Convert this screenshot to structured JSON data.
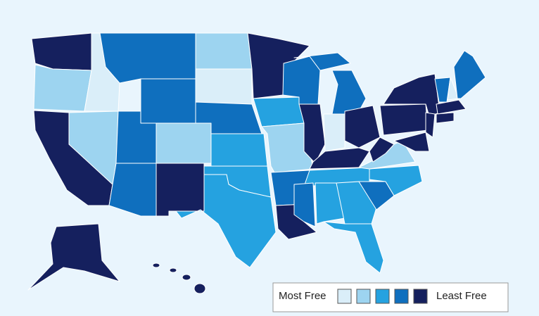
{
  "legend": {
    "min_label": "Most Free",
    "max_label": "Least Free",
    "colors": [
      "#daeef9",
      "#9dd4f0",
      "#25a2e0",
      "#0f6fbe",
      "#15205e"
    ]
  }
}
